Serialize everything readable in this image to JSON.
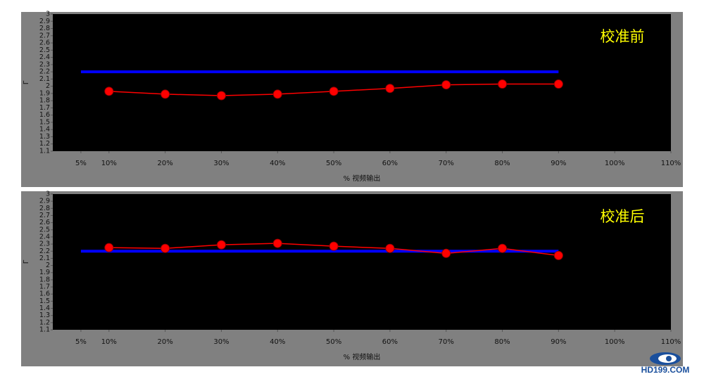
{
  "chart_data": [
    {
      "type": "line",
      "annotation": "校准前",
      "ylabel": "Γ",
      "xlabel": "% 视频输出",
      "xlim": [
        0,
        110
      ],
      "xticks": [
        {
          "value": 5,
          "label": "5%"
        },
        {
          "value": 10,
          "label": "10%"
        },
        {
          "value": 20,
          "label": "20%"
        },
        {
          "value": 30,
          "label": "30%"
        },
        {
          "value": 40,
          "label": "40%"
        },
        {
          "value": 50,
          "label": "50%"
        },
        {
          "value": 60,
          "label": "60%"
        },
        {
          "value": 70,
          "label": "70%"
        },
        {
          "value": 80,
          "label": "80%"
        },
        {
          "value": 90,
          "label": "90%"
        },
        {
          "value": 100,
          "label": "100%"
        },
        {
          "value": 110,
          "label": "110%"
        }
      ],
      "ylim": [
        1.1,
        3
      ],
      "yticks": [
        1.1,
        1.2,
        1.3,
        1.4,
        1.5,
        1.6,
        1.7,
        1.8,
        1.9,
        2,
        2.1,
        2.2,
        2.3,
        2.4,
        2.5,
        2.6,
        2.7,
        2.8,
        2.9,
        3
      ],
      "series": [
        {
          "color": "#0000ff",
          "x": [
            5,
            90
          ],
          "values": [
            2.2,
            2.2
          ]
        },
        {
          "color": "#ff0000",
          "marker": true,
          "x": [
            10,
            20,
            30,
            40,
            50,
            60,
            70,
            80,
            90
          ],
          "values": [
            1.93,
            1.89,
            1.87,
            1.89,
            1.93,
            1.97,
            2.02,
            2.03,
            2.03
          ]
        }
      ]
    },
    {
      "type": "line",
      "annotation": "校准后",
      "ylabel": "Γ",
      "xlabel": "% 视频输出",
      "xlim": [
        0,
        110
      ],
      "xticks": [
        {
          "value": 5,
          "label": "5%"
        },
        {
          "value": 10,
          "label": "10%"
        },
        {
          "value": 20,
          "label": "20%"
        },
        {
          "value": 30,
          "label": "30%"
        },
        {
          "value": 40,
          "label": "40%"
        },
        {
          "value": 50,
          "label": "50%"
        },
        {
          "value": 60,
          "label": "60%"
        },
        {
          "value": 70,
          "label": "70%"
        },
        {
          "value": 80,
          "label": "80%"
        },
        {
          "value": 90,
          "label": "90%"
        },
        {
          "value": 100,
          "label": "100%"
        },
        {
          "value": 110,
          "label": "110%"
        }
      ],
      "ylim": [
        1.1,
        3
      ],
      "yticks": [
        1.1,
        1.2,
        1.3,
        1.4,
        1.5,
        1.6,
        1.7,
        1.8,
        1.9,
        2,
        2.1,
        2.2,
        2.3,
        2.4,
        2.5,
        2.6,
        2.7,
        2.8,
        2.9,
        3
      ],
      "series": [
        {
          "color": "#0000ff",
          "x": [
            5,
            90
          ],
          "values": [
            2.2,
            2.2
          ]
        },
        {
          "color": "#ff0000",
          "marker": true,
          "x": [
            10,
            20,
            30,
            40,
            50,
            60,
            70,
            80,
            90
          ],
          "values": [
            2.25,
            2.24,
            2.29,
            2.31,
            2.27,
            2.24,
            2.17,
            2.24,
            2.14
          ]
        }
      ]
    }
  ],
  "watermark": "HD199.COM"
}
